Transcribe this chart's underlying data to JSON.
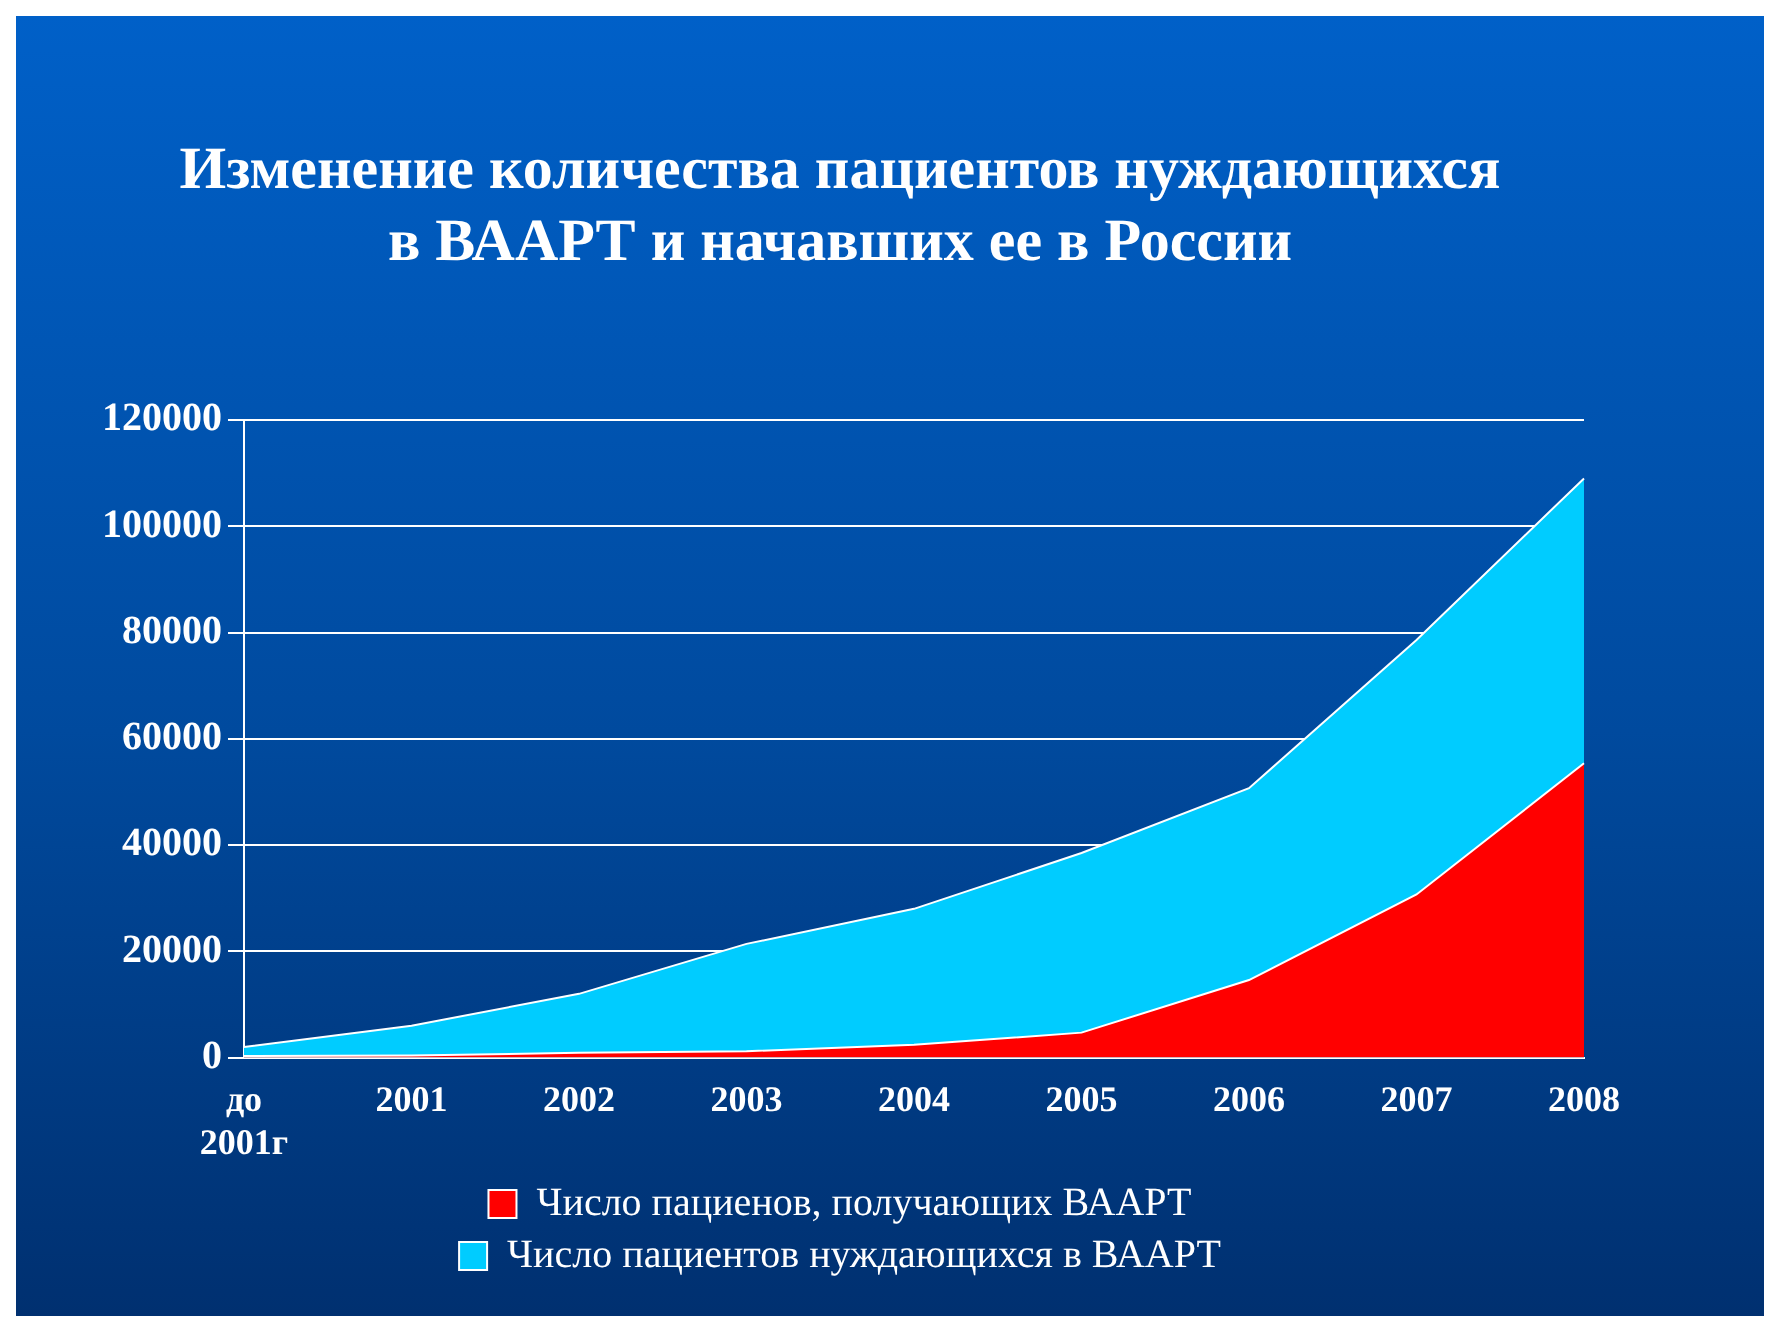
{
  "chart_data": {
    "type": "area",
    "title": "Изменение количества пациентов нуждающихся в ВААРТ и начавших ее в России",
    "categories": [
      "до 2001г",
      "2001",
      "2002",
      "2003",
      "2004",
      "2005",
      "2006",
      "2007",
      "2008"
    ],
    "series": [
      {
        "name": "Число пациентов нуждающихся в ВААРТ",
        "color": "#00ccff",
        "values": [
          2000,
          6000,
          12000,
          21400,
          28000,
          38500,
          50700,
          78600,
          109000
        ]
      },
      {
        "name": "Число пациенов, получающих ВААРТ",
        "color": "#ff0000",
        "values": [
          300,
          400,
          900,
          1200,
          2400,
          4700,
          14600,
          30700,
          55400
        ]
      }
    ],
    "ylim": [
      0,
      120000
    ],
    "yticks": [
      0,
      20000,
      40000,
      60000,
      80000,
      100000,
      120000
    ],
    "grid": "y",
    "legend": "bottom"
  }
}
